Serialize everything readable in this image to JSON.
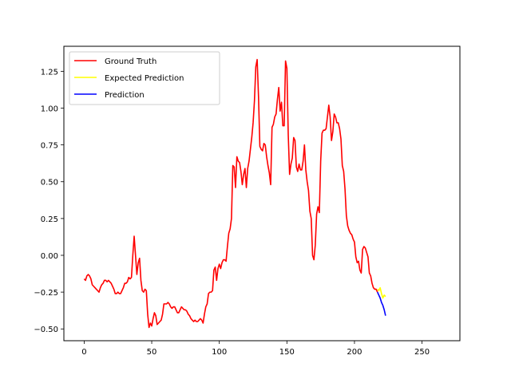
{
  "chart_data": {
    "type": "line",
    "title": "",
    "xlabel": "",
    "ylabel": "",
    "xlim": [
      -15,
      278
    ],
    "ylim": [
      -0.58,
      1.42
    ],
    "grid": false,
    "legend_position": "top-left",
    "x_ticks": [
      {
        "value": 0,
        "label": "0"
      },
      {
        "value": 50,
        "label": "50"
      },
      {
        "value": 100,
        "label": "100"
      },
      {
        "value": 150,
        "label": "150"
      },
      {
        "value": 200,
        "label": "200"
      },
      {
        "value": 250,
        "label": "250"
      }
    ],
    "y_ticks": [
      {
        "value": -0.5,
        "label": "−0.50"
      },
      {
        "value": -0.25,
        "label": "−0.25"
      },
      {
        "value": 0.0,
        "label": "0.00"
      },
      {
        "value": 0.25,
        "label": "0.25"
      },
      {
        "value": 0.5,
        "label": "0.50"
      },
      {
        "value": 0.75,
        "label": "0.75"
      },
      {
        "value": 1.0,
        "label": "1.00"
      },
      {
        "value": 1.25,
        "label": "1.25"
      }
    ],
    "series": [
      {
        "name": "Ground Truth",
        "color": "#ff0000",
        "points": [
          [
            0,
            -0.16
          ],
          [
            1,
            -0.17
          ],
          [
            2,
            -0.14
          ],
          [
            3,
            -0.13
          ],
          [
            4,
            -0.14
          ],
          [
            5,
            -0.16
          ],
          [
            6,
            -0.2
          ],
          [
            7,
            -0.21
          ],
          [
            8,
            -0.22
          ],
          [
            9,
            -0.23
          ],
          [
            10,
            -0.24
          ],
          [
            11,
            -0.25
          ],
          [
            12,
            -0.22
          ],
          [
            13,
            -0.2
          ],
          [
            14,
            -0.19
          ],
          [
            15,
            -0.17
          ],
          [
            16,
            -0.17
          ],
          [
            17,
            -0.18
          ],
          [
            18,
            -0.17
          ],
          [
            19,
            -0.18
          ],
          [
            20,
            -0.19
          ],
          [
            21,
            -0.21
          ],
          [
            22,
            -0.23
          ],
          [
            23,
            -0.26
          ],
          [
            24,
            -0.26
          ],
          [
            25,
            -0.25
          ],
          [
            26,
            -0.26
          ],
          [
            27,
            -0.26
          ],
          [
            28,
            -0.24
          ],
          [
            29,
            -0.22
          ],
          [
            30,
            -0.19
          ],
          [
            31,
            -0.19
          ],
          [
            32,
            -0.18
          ],
          [
            33,
            -0.15
          ],
          [
            34,
            -0.16
          ],
          [
            35,
            -0.15
          ],
          [
            36,
            0.0
          ],
          [
            37,
            0.13
          ],
          [
            38,
            0.0
          ],
          [
            39,
            -0.13
          ],
          [
            40,
            -0.05
          ],
          [
            41,
            -0.02
          ],
          [
            42,
            -0.17
          ],
          [
            43,
            -0.24
          ],
          [
            44,
            -0.25
          ],
          [
            45,
            -0.23
          ],
          [
            46,
            -0.24
          ],
          [
            47,
            -0.4
          ],
          [
            48,
            -0.49
          ],
          [
            49,
            -0.46
          ],
          [
            50,
            -0.48
          ],
          [
            51,
            -0.43
          ],
          [
            52,
            -0.39
          ],
          [
            53,
            -0.41
          ],
          [
            54,
            -0.47
          ],
          [
            55,
            -0.46
          ],
          [
            56,
            -0.45
          ],
          [
            57,
            -0.44
          ],
          [
            58,
            -0.4
          ],
          [
            59,
            -0.33
          ],
          [
            60,
            -0.33
          ],
          [
            61,
            -0.33
          ],
          [
            62,
            -0.32
          ],
          [
            63,
            -0.33
          ],
          [
            64,
            -0.35
          ],
          [
            65,
            -0.36
          ],
          [
            66,
            -0.35
          ],
          [
            67,
            -0.35
          ],
          [
            68,
            -0.37
          ],
          [
            69,
            -0.39
          ],
          [
            70,
            -0.39
          ],
          [
            71,
            -0.37
          ],
          [
            72,
            -0.35
          ],
          [
            73,
            -0.36
          ],
          [
            74,
            -0.37
          ],
          [
            75,
            -0.37
          ],
          [
            76,
            -0.38
          ],
          [
            77,
            -0.4
          ],
          [
            78,
            -0.41
          ],
          [
            79,
            -0.43
          ],
          [
            80,
            -0.44
          ],
          [
            81,
            -0.45
          ],
          [
            82,
            -0.44
          ],
          [
            83,
            -0.45
          ],
          [
            84,
            -0.45
          ],
          [
            85,
            -0.44
          ],
          [
            86,
            -0.43
          ],
          [
            87,
            -0.44
          ],
          [
            88,
            -0.46
          ],
          [
            89,
            -0.4
          ],
          [
            90,
            -0.35
          ],
          [
            91,
            -0.33
          ],
          [
            92,
            -0.26
          ],
          [
            93,
            -0.25
          ],
          [
            94,
            -0.25
          ],
          [
            95,
            -0.24
          ],
          [
            96,
            -0.1
          ],
          [
            97,
            -0.08
          ],
          [
            98,
            -0.17
          ],
          [
            99,
            -0.09
          ],
          [
            100,
            -0.06
          ],
          [
            101,
            -0.09
          ],
          [
            102,
            -0.05
          ],
          [
            103,
            -0.03
          ],
          [
            104,
            -0.03
          ],
          [
            105,
            -0.04
          ],
          [
            106,
            0.06
          ],
          [
            107,
            0.15
          ],
          [
            108,
            0.18
          ],
          [
            109,
            0.25
          ],
          [
            110,
            0.61
          ],
          [
            111,
            0.6
          ],
          [
            112,
            0.46
          ],
          [
            113,
            0.67
          ],
          [
            114,
            0.64
          ],
          [
            115,
            0.63
          ],
          [
            116,
            0.57
          ],
          [
            117,
            0.48
          ],
          [
            118,
            0.55
          ],
          [
            119,
            0.59
          ],
          [
            120,
            0.46
          ],
          [
            121,
            0.59
          ],
          [
            122,
            0.64
          ],
          [
            123,
            0.72
          ],
          [
            124,
            0.8
          ],
          [
            125,
            0.9
          ],
          [
            126,
            1.05
          ],
          [
            127,
            1.28
          ],
          [
            128,
            1.33
          ],
          [
            129,
            1.08
          ],
          [
            130,
            0.74
          ],
          [
            131,
            0.72
          ],
          [
            132,
            0.71
          ],
          [
            133,
            0.76
          ],
          [
            134,
            0.75
          ],
          [
            135,
            0.67
          ],
          [
            136,
            0.61
          ],
          [
            137,
            0.56
          ],
          [
            138,
            0.48
          ],
          [
            139,
            0.87
          ],
          [
            140,
            0.89
          ],
          [
            141,
            0.94
          ],
          [
            142,
            0.96
          ],
          [
            143,
            1.06
          ],
          [
            144,
            1.14
          ],
          [
            145,
            0.98
          ],
          [
            146,
            1.04
          ],
          [
            147,
            0.88
          ],
          [
            148,
            0.88
          ],
          [
            149,
            1.32
          ],
          [
            150,
            1.27
          ],
          [
            151,
            0.82
          ],
          [
            152,
            0.55
          ],
          [
            153,
            0.62
          ],
          [
            154,
            0.66
          ],
          [
            155,
            0.8
          ],
          [
            156,
            0.78
          ],
          [
            157,
            0.6
          ],
          [
            158,
            0.57
          ],
          [
            159,
            0.62
          ],
          [
            160,
            0.58
          ],
          [
            161,
            0.58
          ],
          [
            162,
            0.64
          ],
          [
            163,
            0.75
          ],
          [
            164,
            0.58
          ],
          [
            165,
            0.5
          ],
          [
            166,
            0.44
          ],
          [
            167,
            0.3
          ],
          [
            168,
            0.25
          ],
          [
            169,
            0.0
          ],
          [
            170,
            -0.03
          ],
          [
            171,
            0.07
          ],
          [
            172,
            0.28
          ],
          [
            173,
            0.33
          ],
          [
            174,
            0.29
          ],
          [
            175,
            0.64
          ],
          [
            176,
            0.83
          ],
          [
            177,
            0.85
          ],
          [
            178,
            0.85
          ],
          [
            179,
            0.86
          ],
          [
            180,
            0.94
          ],
          [
            181,
            1.02
          ],
          [
            182,
            0.94
          ],
          [
            183,
            0.78
          ],
          [
            184,
            0.84
          ],
          [
            185,
            0.96
          ],
          [
            186,
            0.94
          ],
          [
            187,
            0.9
          ],
          [
            188,
            0.9
          ],
          [
            189,
            0.86
          ],
          [
            190,
            0.79
          ],
          [
            191,
            0.61
          ],
          [
            192,
            0.57
          ],
          [
            193,
            0.45
          ],
          [
            194,
            0.27
          ],
          [
            195,
            0.2
          ],
          [
            196,
            0.17
          ],
          [
            197,
            0.15
          ],
          [
            198,
            0.14
          ],
          [
            199,
            0.11
          ],
          [
            200,
            0.09
          ],
          [
            201,
            -0.01
          ],
          [
            202,
            -0.05
          ],
          [
            203,
            -0.04
          ],
          [
            204,
            -0.1
          ],
          [
            205,
            -0.12
          ],
          [
            206,
            0.04
          ],
          [
            207,
            0.06
          ],
          [
            208,
            0.05
          ],
          [
            209,
            0.02
          ],
          [
            210,
            -0.01
          ],
          [
            211,
            -0.12
          ],
          [
            212,
            -0.14
          ],
          [
            213,
            -0.19
          ],
          [
            214,
            -0.22
          ],
          [
            215,
            -0.23
          ],
          [
            216,
            -0.23
          ],
          [
            217,
            -0.25
          ]
        ]
      },
      {
        "name": "Expected Prediction",
        "color": "#ffff00",
        "points": [
          [
            217,
            -0.23
          ],
          [
            218,
            -0.24
          ],
          [
            219,
            -0.22
          ],
          [
            220,
            -0.26
          ],
          [
            221,
            -0.29
          ],
          [
            222,
            -0.27
          ],
          [
            223,
            -0.28
          ]
        ]
      },
      {
        "name": "Prediction",
        "color": "#0000ff",
        "points": [
          [
            217,
            -0.25
          ],
          [
            218,
            -0.27
          ],
          [
            219,
            -0.29
          ],
          [
            220,
            -0.32
          ],
          [
            221,
            -0.34
          ],
          [
            222,
            -0.37
          ],
          [
            223,
            -0.41
          ]
        ]
      }
    ]
  }
}
